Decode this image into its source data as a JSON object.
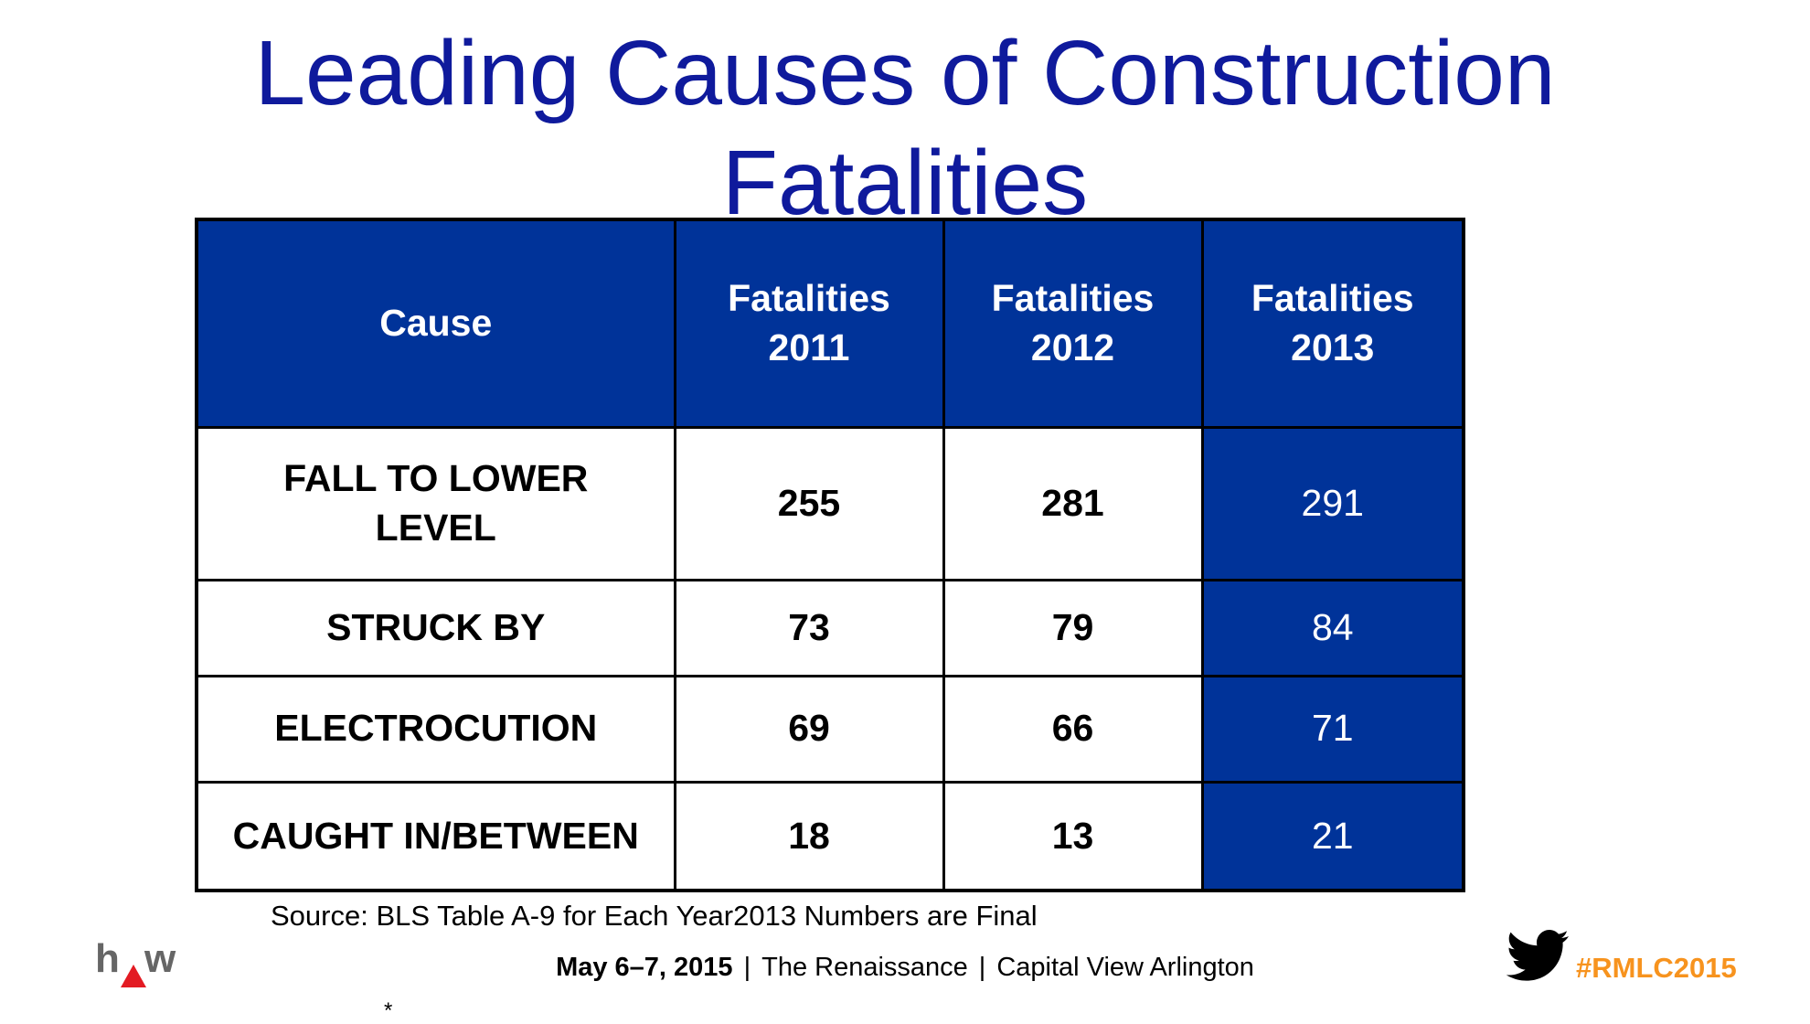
{
  "title": [
    "Leading Causes of Construction",
    "Fatalities"
  ],
  "table": {
    "header": [
      "Cause",
      "Fatalities\n2011",
      "Fatalities\n2012",
      "Fatalities\n2013"
    ],
    "rows": [
      [
        "FALL TO LOWER\nLEVEL",
        "255",
        "281",
        "291"
      ],
      [
        "STRUCK BY",
        "73",
        "79",
        "84"
      ],
      [
        "ELECTROCUTION",
        "69",
        "66",
        "71"
      ],
      [
        "CAUGHT IN/BETWEEN",
        "18",
        "13",
        "21"
      ]
    ]
  },
  "source": "Source: BLS Table A-9 for Each Year2013 Numbers are  Final",
  "footer": {
    "items": [
      "May 6–7, 2015",
      "The Renaissance",
      "Capital View Arlington"
    ],
    "separator": "|"
  },
  "logo": [
    "h",
    "w"
  ],
  "hashtag": "#RMLC2015",
  "footnote_mark": "*"
}
